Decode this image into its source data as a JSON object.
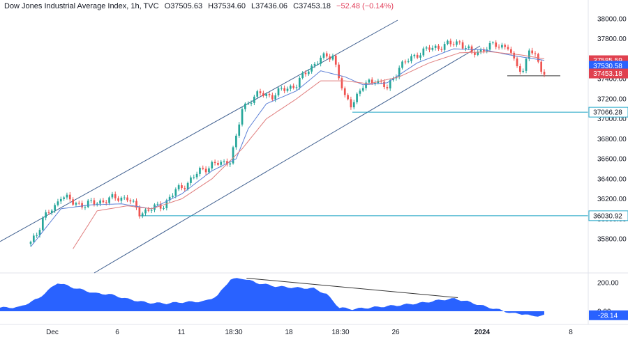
{
  "header": {
    "symbol": "Dow Jones Industrial Average Index, 1h, TVC",
    "open_label": "O",
    "open": "37505.63",
    "high_label": "H",
    "high": "37534.60",
    "low_label": "L",
    "low": "37436.06",
    "close_label": "C",
    "close": "37453.18",
    "change": "−52.48",
    "change_pct": "(−0.14%)"
  },
  "colors": {
    "up": "#26a69a",
    "down": "#ef5350",
    "ma_fast": "#5b7fd6",
    "ma_slow": "#e07d7d",
    "channel": "#3f5f8f",
    "level": "#1ca3c3",
    "oscillator": "#2962ff",
    "badge_red": "#e0404e",
    "badge_blue": "#2962ff",
    "badge_level": "#22a7c9"
  },
  "chart_data": [
    {
      "type": "candlestick",
      "y_ticks": [
        "38000.00",
        "37800.00",
        "37600.00",
        "37400.00",
        "37200.00",
        "37000.00",
        "36800.00",
        "36600.00",
        "36400.00",
        "36200.00",
        "36000.00",
        "35800.00"
      ],
      "x_ticks": [
        "Dec",
        "6",
        "11",
        "18:30",
        "18",
        "18:30",
        "26",
        "2024",
        "8"
      ],
      "ylim": [
        35680,
        38120
      ],
      "price_badges": [
        {
          "label": "37585.59",
          "value": 37585.59,
          "kind": "red"
        },
        {
          "label": "37530.58",
          "value": 37530.58,
          "kind": "blue"
        },
        {
          "label": "37453.18",
          "value": 37453.18,
          "kind": "red"
        }
      ],
      "levels": [
        {
          "label": "37066.28",
          "value": 37066.28
        },
        {
          "label": "36030.92",
          "value": 36030.92
        }
      ],
      "low_marker": 37430,
      "anchors": [
        [
          0,
          35760
        ],
        [
          2,
          35860
        ],
        [
          4,
          36000
        ],
        [
          8,
          36120
        ],
        [
          10,
          36240
        ],
        [
          14,
          36160
        ],
        [
          18,
          36140
        ],
        [
          24,
          36180
        ],
        [
          28,
          36210
        ],
        [
          32,
          36210
        ],
        [
          36,
          36060
        ],
        [
          40,
          36100
        ],
        [
          44,
          36140
        ],
        [
          48,
          36280
        ],
        [
          52,
          36360
        ],
        [
          56,
          36480
        ],
        [
          60,
          36540
        ],
        [
          64,
          36560
        ],
        [
          66,
          36590
        ],
        [
          68,
          36800
        ],
        [
          70,
          37100
        ],
        [
          73,
          37200
        ],
        [
          76,
          37250
        ],
        [
          80,
          37230
        ],
        [
          84,
          37300
        ],
        [
          88,
          37340
        ],
        [
          92,
          37500
        ],
        [
          96,
          37600
        ],
        [
          100,
          37640
        ],
        [
          104,
          37200
        ],
        [
          106,
          37150
        ],
        [
          110,
          37320
        ],
        [
          114,
          37400
        ],
        [
          118,
          37300
        ],
        [
          122,
          37520
        ],
        [
          128,
          37650
        ],
        [
          132,
          37700
        ],
        [
          138,
          37740
        ],
        [
          142,
          37770
        ],
        [
          146,
          37650
        ],
        [
          150,
          37700
        ],
        [
          154,
          37740
        ],
        [
          158,
          37720
        ],
        [
          160,
          37560
        ],
        [
          163,
          37480
        ],
        [
          165,
          37700
        ],
        [
          168,
          37560
        ],
        [
          170,
          37460
        ]
      ],
      "ma_fast_anchors": [
        [
          0,
          35720
        ],
        [
          10,
          36100
        ],
        [
          20,
          36140
        ],
        [
          30,
          36150
        ],
        [
          40,
          36100
        ],
        [
          50,
          36250
        ],
        [
          60,
          36480
        ],
        [
          68,
          36600
        ],
        [
          72,
          36900
        ],
        [
          78,
          37150
        ],
        [
          88,
          37280
        ],
        [
          96,
          37480
        ],
        [
          104,
          37420
        ],
        [
          110,
          37340
        ],
        [
          118,
          37360
        ],
        [
          128,
          37560
        ],
        [
          140,
          37700
        ],
        [
          150,
          37690
        ],
        [
          160,
          37630
        ],
        [
          170,
          37585
        ]
      ],
      "ma_slow_anchors": [
        [
          14,
          35700
        ],
        [
          22,
          36080
        ],
        [
          32,
          36130
        ],
        [
          40,
          36100
        ],
        [
          50,
          36200
        ],
        [
          60,
          36400
        ],
        [
          70,
          36700
        ],
        [
          78,
          37000
        ],
        [
          88,
          37200
        ],
        [
          96,
          37380
        ],
        [
          104,
          37380
        ],
        [
          112,
          37350
        ],
        [
          122,
          37420
        ],
        [
          132,
          37560
        ],
        [
          142,
          37660
        ],
        [
          152,
          37670
        ],
        [
          162,
          37640
        ],
        [
          170,
          37600
        ]
      ]
    },
    {
      "type": "area",
      "name": "oscillator",
      "y_ticks": [
        "200.00",
        "0.00"
      ],
      "ylim": [
        -30,
        230
      ],
      "value_badge": "-28.14",
      "anchors": [
        [
          0,
          25
        ],
        [
          6,
          28
        ],
        [
          12,
          90
        ],
        [
          18,
          200
        ],
        [
          23,
          165
        ],
        [
          30,
          125
        ],
        [
          34,
          120
        ],
        [
          40,
          85
        ],
        [
          46,
          60
        ],
        [
          52,
          55
        ],
        [
          56,
          62
        ],
        [
          64,
          70
        ],
        [
          68,
          110
        ],
        [
          72,
          225
        ],
        [
          76,
          230
        ],
        [
          80,
          200
        ],
        [
          86,
          175
        ],
        [
          92,
          165
        ],
        [
          98,
          160
        ],
        [
          102,
          120
        ],
        [
          106,
          25
        ],
        [
          110,
          15
        ],
        [
          118,
          30
        ],
        [
          126,
          45
        ],
        [
          132,
          60
        ],
        [
          138,
          80
        ],
        [
          142,
          88
        ],
        [
          146,
          68
        ],
        [
          152,
          30
        ],
        [
          156,
          10
        ],
        [
          160,
          -15
        ],
        [
          164,
          -20
        ],
        [
          166,
          -35
        ],
        [
          170,
          -28
        ]
      ],
      "divergence_line": [
        [
          77,
          232
        ],
        [
          143,
          95
        ]
      ]
    }
  ]
}
